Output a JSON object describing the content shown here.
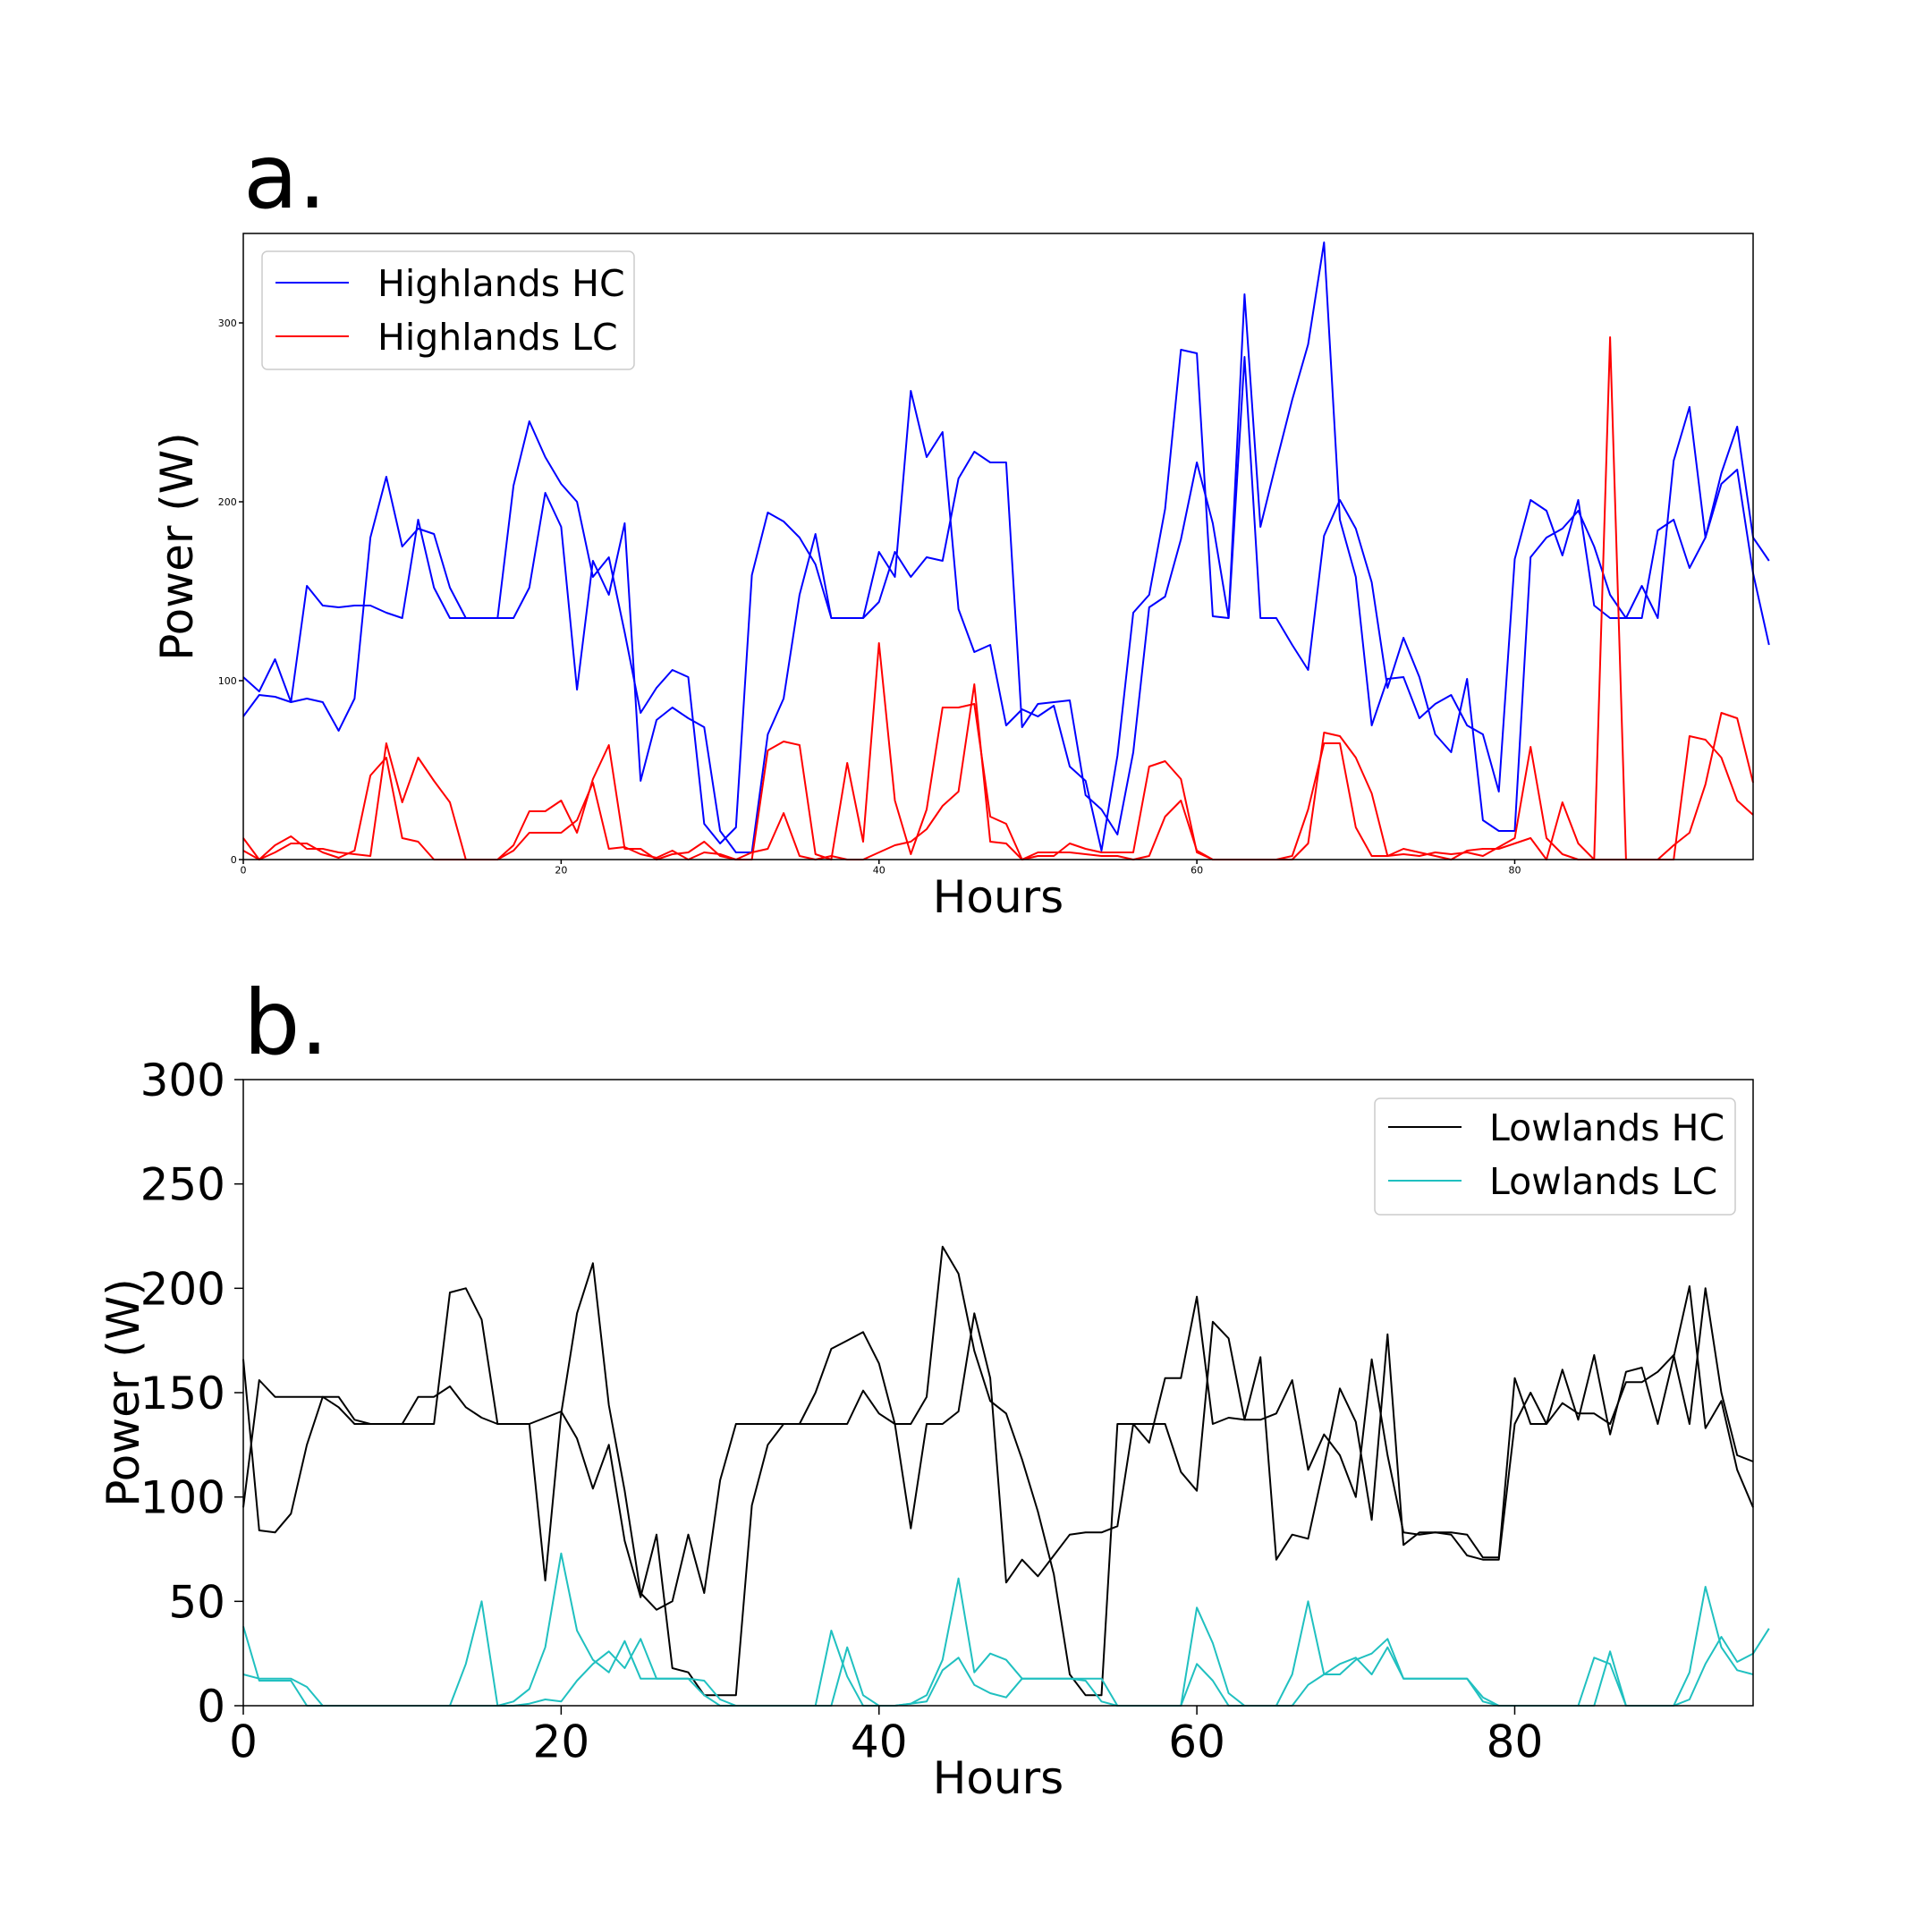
{
  "figure": {
    "background": "#ffffff"
  },
  "chart_data": [
    {
      "type": "line",
      "panel_label": "a.",
      "title": "",
      "xlabel": "Hours",
      "ylabel": "Power (W)",
      "xlim": [
        0,
        95
      ],
      "ylim": [
        0,
        350
      ],
      "xticks": [
        "0",
        "20",
        "40",
        "60",
        "80"
      ],
      "yticks": [
        "0",
        "100",
        "200",
        "300"
      ],
      "legend": {
        "placement": "upper-left",
        "entries": [
          "Highlands HC",
          "Highlands LC"
        ]
      },
      "series": [
        {
          "name": "Highlands HC",
          "color": "#0000ff",
          "values": [
            80,
            92,
            91,
            88,
            90,
            88,
            72,
            90,
            180,
            214,
            175,
            185,
            182,
            152,
            135,
            135,
            135,
            135,
            152,
            205,
            186,
            95,
            167,
            148,
            188,
            44,
            78,
            85,
            79,
            74,
            16,
            4,
            4,
            70,
            90,
            148,
            182,
            135,
            135,
            135,
            144,
            172,
            158,
            169,
            167,
            213,
            228,
            222,
            222,
            74,
            87,
            88,
            89,
            36,
            28,
            14,
            60,
            141,
            147,
            179,
            222,
            188,
            135,
            281,
            135,
            135,
            120,
            106,
            181,
            201,
            185,
            155,
            96,
            124,
            102,
            70,
            60,
            101,
            22,
            16,
            16,
            169,
            180,
            185,
            195,
            175,
            148,
            135,
            135,
            184,
            190,
            163,
            180,
            216,
            242,
            180,
            167
          ]
        },
        {
          "name": "Highlands HC",
          "color": "#0000ff",
          "values": [
            102,
            94,
            112,
            88,
            153,
            142,
            141,
            142,
            142,
            138,
            135,
            190,
            152,
            135,
            135,
            135,
            135,
            209,
            245,
            225,
            210,
            200,
            158,
            169,
            127,
            82,
            96,
            106,
            102,
            20,
            9,
            18,
            159,
            194,
            189,
            180,
            165,
            135,
            135,
            135,
            172,
            158,
            262,
            225,
            239,
            140,
            116,
            120,
            75,
            84,
            80,
            86,
            52,
            44,
            5,
            58,
            138,
            148,
            196,
            285,
            283,
            136,
            135,
            316,
            186,
            222,
            257,
            288,
            345,
            190,
            158,
            75,
            101,
            102,
            79,
            87,
            92,
            75,
            70,
            38,
            168,
            201,
            195,
            170,
            201,
            142,
            135,
            135,
            153,
            135,
            223,
            253,
            180,
            210,
            218,
            160,
            120
          ]
        },
        {
          "name": "Highlands LC",
          "color": "#ff0000",
          "values": [
            12,
            0,
            4,
            9,
            9,
            4,
            1,
            5,
            47,
            57,
            12,
            10,
            0,
            0,
            0,
            0,
            0,
            8,
            27,
            27,
            33,
            15,
            45,
            64,
            6,
            6,
            0,
            3,
            4,
            10,
            2,
            0,
            0,
            61,
            66,
            64,
            3,
            0,
            54,
            10,
            121,
            33,
            3,
            28,
            85,
            85,
            87,
            24,
            20,
            0,
            2,
            2,
            9,
            6,
            4,
            4,
            4,
            52,
            55,
            45,
            4,
            0,
            0,
            0,
            0,
            0,
            0,
            9,
            71,
            69,
            57,
            37,
            2,
            3,
            2,
            4,
            3,
            4,
            2,
            7,
            12,
            63,
            12,
            3,
            0,
            0,
            292,
            0,
            0,
            0,
            0,
            69,
            67,
            57,
            33,
            25
          ]
        },
        {
          "name": "Highlands LC",
          "color": "#ff0000",
          "values": [
            5,
            0,
            8,
            13,
            6,
            6,
            4,
            3,
            2,
            65,
            32,
            57,
            44,
            32,
            0,
            0,
            0,
            5,
            15,
            15,
            15,
            22,
            43,
            6,
            7,
            3,
            1,
            5,
            0,
            4,
            3,
            0,
            4,
            6,
            26,
            2,
            0,
            2,
            0,
            0,
            4,
            8,
            10,
            17,
            30,
            38,
            98,
            10,
            9,
            0,
            4,
            4,
            4,
            3,
            2,
            2,
            0,
            2,
            24,
            33,
            5,
            0,
            0,
            0,
            0,
            0,
            2,
            28,
            65,
            65,
            18,
            2,
            2,
            6,
            4,
            2,
            0,
            5,
            6,
            6,
            9,
            12,
            0,
            32,
            9,
            0,
            0,
            0,
            0,
            0,
            8,
            15,
            42,
            82,
            79,
            43
          ]
        }
      ]
    },
    {
      "type": "line",
      "panel_label": "b.",
      "title": "",
      "xlabel": "Hours",
      "ylabel": "Power (W)",
      "xlim": [
        0,
        95
      ],
      "ylim": [
        0,
        300
      ],
      "xticks": [
        "0",
        "20",
        "40",
        "60",
        "80"
      ],
      "yticks": [
        "0",
        "50",
        "100",
        "150",
        "200",
        "250",
        "300"
      ],
      "legend": {
        "placement": "upper-right",
        "entries": [
          "Lowlands HC",
          "Lowlands LC"
        ]
      },
      "series": [
        {
          "name": "Lowlands HC",
          "color": "#000000",
          "values": [
            166,
            84,
            83,
            92,
            125,
            148,
            148,
            137,
            135,
            135,
            135,
            135,
            135,
            198,
            200,
            185,
            135,
            135,
            135,
            60,
            140,
            188,
            212,
            144,
            103,
            54,
            46,
            50,
            82,
            54,
            108,
            135,
            135,
            135,
            135,
            135,
            135,
            135,
            135,
            151,
            140,
            135,
            85,
            135,
            135,
            141,
            188,
            157,
            59,
            70,
            62,
            72,
            82,
            83,
            83,
            86,
            135,
            126,
            157,
            157,
            196,
            135,
            138,
            137,
            167,
            70,
            82,
            80,
            115,
            152,
            136,
            89,
            178,
            77,
            83,
            83,
            83,
            82,
            71,
            71,
            157,
            135,
            135,
            161,
            137,
            168,
            130,
            160,
            162,
            135,
            167,
            201,
            133,
            146,
            113,
            95
          ]
        },
        {
          "name": "Lowlands HC",
          "color": "#000000",
          "values": [
            95,
            156,
            148,
            148,
            148,
            148,
            143,
            135,
            135,
            135,
            135,
            148,
            148,
            153,
            143,
            138,
            135,
            135,
            135,
            138,
            141,
            128,
            104,
            125,
            79,
            52,
            82,
            18,
            16,
            5,
            5,
            5,
            96,
            125,
            135,
            135,
            150,
            171,
            175,
            179,
            164,
            135,
            135,
            148,
            220,
            207,
            170,
            146,
            140,
            118,
            93,
            63,
            15,
            5,
            5,
            135,
            135,
            135,
            135,
            112,
            103,
            184,
            176,
            137,
            137,
            140,
            156,
            113,
            130,
            120,
            100,
            166,
            120,
            83,
            82,
            83,
            82,
            72,
            70,
            70,
            135,
            150,
            135,
            145,
            140,
            140,
            135,
            155,
            155,
            160,
            168,
            135,
            200,
            150,
            120,
            117
          ]
        },
        {
          "name": "Lowlands LC",
          "color": "#20c0c0",
          "values": [
            38,
            12,
            12,
            12,
            0,
            0,
            0,
            0,
            0,
            0,
            0,
            0,
            0,
            0,
            0,
            0,
            0,
            2,
            8,
            28,
            73,
            36,
            22,
            16,
            31,
            13,
            13,
            13,
            13,
            5,
            0,
            0,
            0,
            0,
            0,
            0,
            0,
            36,
            14,
            0,
            0,
            0,
            1,
            5,
            22,
            61,
            16,
            25,
            22,
            13,
            13,
            13,
            13,
            13,
            13,
            0,
            0,
            0,
            0,
            0,
            47,
            30,
            6,
            0,
            0,
            0,
            15,
            50,
            15,
            15,
            22,
            25,
            32,
            13,
            13,
            13,
            13,
            13,
            2,
            0,
            0,
            0,
            0,
            0,
            0,
            23,
            20,
            0,
            0,
            0,
            0,
            16,
            57,
            28,
            17,
            15
          ]
        },
        {
          "name": "Lowlands LC",
          "color": "#20c0c0",
          "values": [
            15,
            13,
            13,
            13,
            9,
            0,
            0,
            0,
            0,
            0,
            0,
            0,
            0,
            0,
            20,
            50,
            0,
            0,
            1,
            3,
            2,
            12,
            20,
            26,
            18,
            32,
            13,
            13,
            13,
            12,
            3,
            0,
            0,
            0,
            0,
            0,
            0,
            0,
            28,
            5,
            0,
            0,
            1,
            2,
            17,
            23,
            10,
            6,
            4,
            13,
            13,
            13,
            13,
            12,
            2,
            0,
            0,
            0,
            0,
            0,
            20,
            12,
            0,
            0,
            0,
            0,
            0,
            10,
            15,
            20,
            23,
            15,
            28,
            13,
            13,
            13,
            13,
            13,
            4,
            0,
            0,
            0,
            0,
            0,
            0,
            0,
            26,
            0,
            0,
            0,
            0,
            3,
            20,
            33,
            21,
            25,
            37
          ]
        }
      ]
    }
  ]
}
